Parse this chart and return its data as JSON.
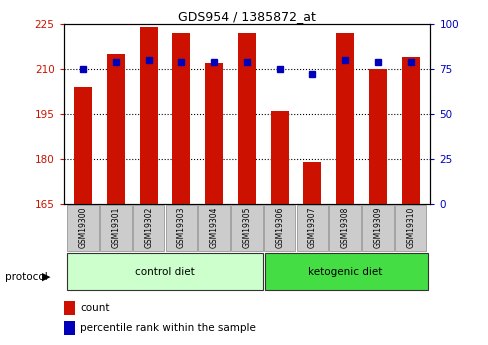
{
  "title": "GDS954 / 1385872_at",
  "samples": [
    "GSM19300",
    "GSM19301",
    "GSM19302",
    "GSM19303",
    "GSM19304",
    "GSM19305",
    "GSM19306",
    "GSM19307",
    "GSM19308",
    "GSM19309",
    "GSM19310"
  ],
  "red_values": [
    204,
    215,
    224,
    222,
    212,
    222,
    196,
    179,
    222,
    210,
    214
  ],
  "blue_values": [
    75,
    79,
    80,
    79,
    79,
    79,
    75,
    72,
    80,
    79,
    79
  ],
  "ylim_left": [
    165,
    225
  ],
  "ylim_right": [
    0,
    100
  ],
  "yticks_left": [
    165,
    180,
    195,
    210,
    225
  ],
  "yticks_right": [
    0,
    25,
    50,
    75,
    100
  ],
  "grid_values": [
    180,
    195,
    210
  ],
  "ctrl_n": 6,
  "keto_n": 5,
  "red_color": "#cc1100",
  "blue_color": "#0000bb",
  "bar_width": 0.55,
  "control_bg": "#ccffcc",
  "ketogenic_bg": "#44dd44",
  "sample_bg": "#cccccc",
  "protocol_label": "protocol",
  "control_label": "control diet",
  "ketogenic_label": "ketogenic diet",
  "legend_count": "count",
  "legend_percentile": "percentile rank within the sample"
}
